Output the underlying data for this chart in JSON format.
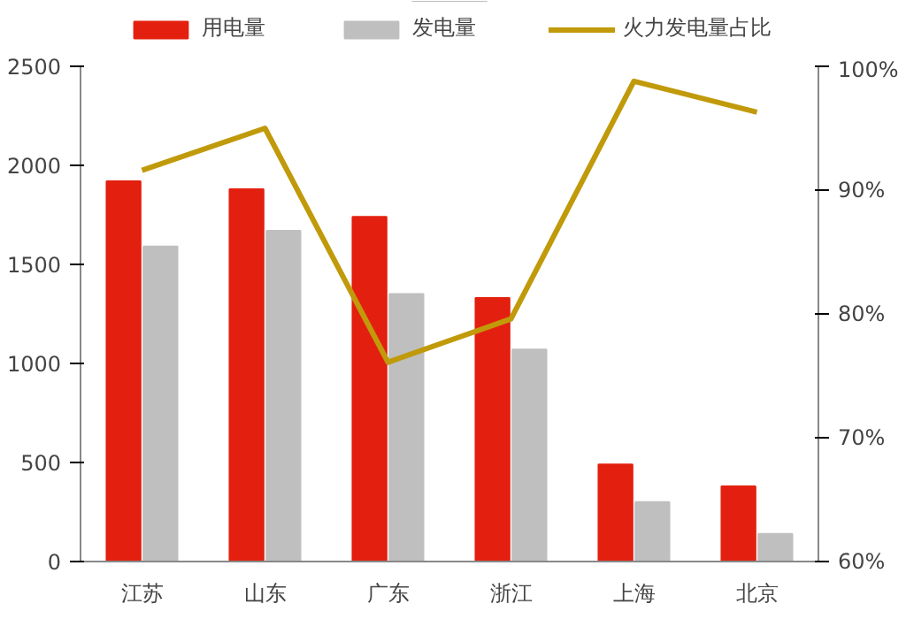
{
  "chart_data": {
    "type": "bar",
    "categories": [
      "江苏",
      "山东",
      "广东",
      "浙江",
      "上海",
      "北京"
    ],
    "series": [
      {
        "name": "用电量",
        "color": "#e3200f",
        "values": [
          1920,
          1880,
          1740,
          1330,
          490,
          380
        ]
      },
      {
        "name": "发电量",
        "color": "#bfbfbf",
        "values": [
          1590,
          1670,
          1350,
          1070,
          300,
          140
        ]
      },
      {
        "name": "火力发电量占比",
        "color": "#c19a0b",
        "type": "line",
        "axis": "y2",
        "values": [
          91.6,
          95.0,
          76.1,
          79.6,
          98.8,
          96.3
        ]
      }
    ],
    "ylim": [
      0,
      2500
    ],
    "yticks": [
      0,
      500,
      1000,
      1500,
      2000,
      2500
    ],
    "y2lim": [
      60,
      100
    ],
    "y2ticks": [
      {
        "value": 60,
        "label": "60%"
      },
      {
        "value": 70,
        "label": "70%"
      },
      {
        "value": 80,
        "label": "80%"
      },
      {
        "value": 90,
        "label": "90%"
      },
      {
        "value": 100,
        "label": "100%"
      }
    ],
    "legend": "top",
    "grid": false,
    "marker": "none",
    "line_style": "solid"
  }
}
